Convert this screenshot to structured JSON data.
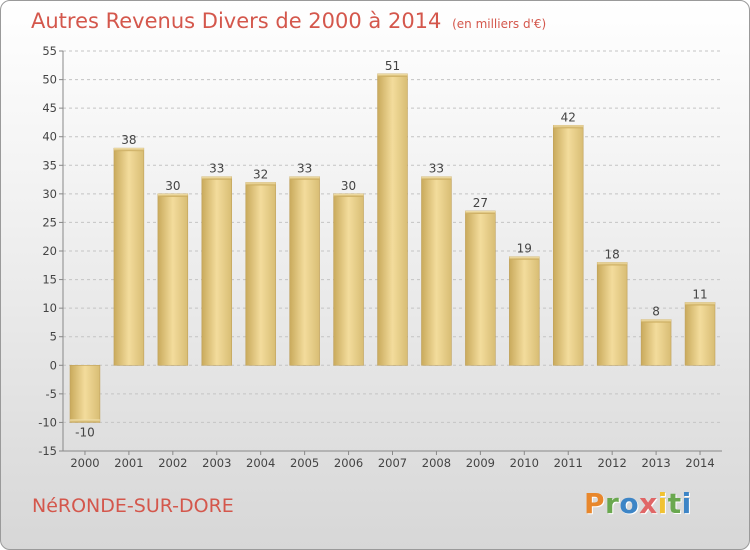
{
  "title": "Autres Revenus Divers de 2000 à 2014",
  "unit_note": "(en milliers d'€)",
  "commune": "NéRONDE-SUR-DORE",
  "logo": {
    "letters": [
      "P",
      "r",
      "o",
      "x",
      "i",
      "t",
      "i"
    ],
    "colors": [
      "#e8872c",
      "#6aa84f",
      "#3d85c6",
      "#e06666",
      "#f1c232",
      "#6aa84f",
      "#3d85c6"
    ]
  },
  "chart_data": {
    "type": "bar",
    "title": "Autres Revenus Divers de 2000 à 2014",
    "xlabel": "",
    "ylabel": "",
    "categories": [
      "2000",
      "2001",
      "2002",
      "2003",
      "2004",
      "2005",
      "2006",
      "2007",
      "2008",
      "2009",
      "2010",
      "2011",
      "2012",
      "2013",
      "2014"
    ],
    "values": [
      -10,
      38,
      30,
      33,
      32,
      33,
      30,
      51,
      33,
      27,
      19,
      42,
      18,
      8,
      11
    ],
    "ylim": [
      -15,
      55
    ],
    "yticks": [
      -15,
      -10,
      -5,
      0,
      5,
      10,
      15,
      20,
      25,
      30,
      35,
      40,
      45,
      50,
      55
    ],
    "grid": true,
    "bar_color": "#e2c983"
  }
}
